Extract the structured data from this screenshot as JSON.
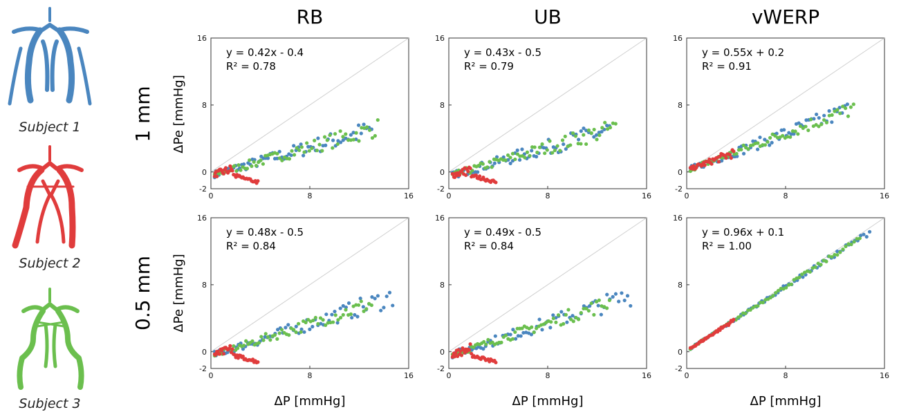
{
  "subjects": [
    {
      "label": "Subject 1",
      "color": "#4a86bf"
    },
    {
      "label": "Subject 2",
      "color": "#e03c3c"
    },
    {
      "label": "Subject 3",
      "color": "#6bbf4e"
    }
  ],
  "column_titles": [
    "RB",
    "UB",
    "vWERP"
  ],
  "row_titles": [
    "1 mm",
    "0.5 mm"
  ],
  "ylabel": "ΔPe [mmHg]",
  "xlabel": "ΔP [mmHg]",
  "chart_data": [
    {
      "type": "scatter",
      "row": 0,
      "col": 0,
      "title": "",
      "xlim": [
        0,
        16
      ],
      "ylim": [
        -2,
        16
      ],
      "xticks": [
        0,
        8,
        16
      ],
      "yticks": [
        -2,
        0,
        8,
        16
      ],
      "identity_line": true,
      "annotation": {
        "equation": "y  = 0.42x - 0.4",
        "r2": "R² = 0.78"
      },
      "series": [
        {
          "subject": 0,
          "slope": 0.42,
          "intercept": -0.4,
          "xmax": 13.0,
          "spread": 0.9
        },
        {
          "subject": 2,
          "slope": 0.42,
          "intercept": -0.4,
          "xmax": 13.5,
          "spread": 0.8
        },
        {
          "subject": 1,
          "slope": 0.42,
          "intercept": -0.4,
          "xmax": 3.8,
          "spread": 0.7
        }
      ]
    },
    {
      "type": "scatter",
      "row": 0,
      "col": 1,
      "title": "",
      "xlim": [
        0,
        16
      ],
      "ylim": [
        -2,
        16
      ],
      "xticks": [
        0,
        8,
        16
      ],
      "yticks": [
        -2,
        0,
        8,
        16
      ],
      "identity_line": true,
      "annotation": {
        "equation": "y  = 0.43x - 0.5",
        "r2": "R² = 0.79"
      },
      "series": [
        {
          "subject": 0,
          "slope": 0.43,
          "intercept": -0.5,
          "xmax": 13.0,
          "spread": 0.9
        },
        {
          "subject": 2,
          "slope": 0.43,
          "intercept": -0.5,
          "xmax": 13.5,
          "spread": 0.8
        },
        {
          "subject": 1,
          "slope": 0.43,
          "intercept": -0.5,
          "xmax": 3.8,
          "spread": 0.7
        }
      ]
    },
    {
      "type": "scatter",
      "row": 0,
      "col": 2,
      "title": "",
      "xlim": [
        0,
        16
      ],
      "ylim": [
        -2,
        16
      ],
      "xticks": [
        0,
        8,
        16
      ],
      "yticks": [
        -2,
        0,
        8,
        16
      ],
      "identity_line": true,
      "annotation": {
        "equation": "y  = 0.55x + 0.2",
        "r2": "R² = 0.91"
      },
      "series": [
        {
          "subject": 0,
          "slope": 0.55,
          "intercept": 0.2,
          "xmax": 13.0,
          "spread": 0.8
        },
        {
          "subject": 2,
          "slope": 0.55,
          "intercept": 0.2,
          "xmax": 13.5,
          "spread": 0.7
        },
        {
          "subject": 1,
          "slope": 0.55,
          "intercept": 0.2,
          "xmax": 3.8,
          "spread": 0.4
        }
      ]
    },
    {
      "type": "scatter",
      "row": 1,
      "col": 0,
      "title": "",
      "xlim": [
        0,
        16
      ],
      "ylim": [
        -2,
        16
      ],
      "xticks": [
        0,
        8,
        16
      ],
      "yticks": [
        -2,
        0,
        8,
        16
      ],
      "identity_line": true,
      "annotation": {
        "equation": "y  = 0.48x - 0.5",
        "r2": "R² = 0.84"
      },
      "series": [
        {
          "subject": 0,
          "slope": 0.48,
          "intercept": -0.5,
          "xmax": 14.7,
          "spread": 0.9
        },
        {
          "subject": 2,
          "slope": 0.48,
          "intercept": -0.5,
          "xmax": 13.0,
          "spread": 0.7
        },
        {
          "subject": 1,
          "slope": 0.48,
          "intercept": -0.5,
          "xmax": 3.8,
          "spread": 0.7
        }
      ]
    },
    {
      "type": "scatter",
      "row": 1,
      "col": 1,
      "title": "",
      "xlim": [
        0,
        16
      ],
      "ylim": [
        -2,
        16
      ],
      "xticks": [
        0,
        8,
        16
      ],
      "yticks": [
        -2,
        0,
        8,
        16
      ],
      "identity_line": true,
      "annotation": {
        "equation": "y  = 0.49x - 0.5",
        "r2": "R² = 0.84"
      },
      "series": [
        {
          "subject": 0,
          "slope": 0.49,
          "intercept": -0.5,
          "xmax": 14.7,
          "spread": 0.9
        },
        {
          "subject": 2,
          "slope": 0.49,
          "intercept": -0.5,
          "xmax": 13.0,
          "spread": 0.7
        },
        {
          "subject": 1,
          "slope": 0.49,
          "intercept": -0.5,
          "xmax": 3.8,
          "spread": 0.7
        }
      ]
    },
    {
      "type": "scatter",
      "row": 1,
      "col": 2,
      "title": "",
      "xlim": [
        0,
        16
      ],
      "ylim": [
        -2,
        16
      ],
      "xticks": [
        0,
        8,
        16
      ],
      "yticks": [
        -2,
        0,
        8,
        16
      ],
      "identity_line": true,
      "annotation": {
        "equation": "y  = 0.96x + 0.1",
        "r2": "R² = 1.00"
      },
      "series": [
        {
          "subject": 0,
          "slope": 0.96,
          "intercept": 0.1,
          "xmax": 14.8,
          "spread": 0.25
        },
        {
          "subject": 2,
          "slope": 0.96,
          "intercept": 0.1,
          "xmax": 14.0,
          "spread": 0.2
        },
        {
          "subject": 1,
          "slope": 0.96,
          "intercept": 0.1,
          "xmax": 3.8,
          "spread": 0.15
        }
      ]
    }
  ]
}
